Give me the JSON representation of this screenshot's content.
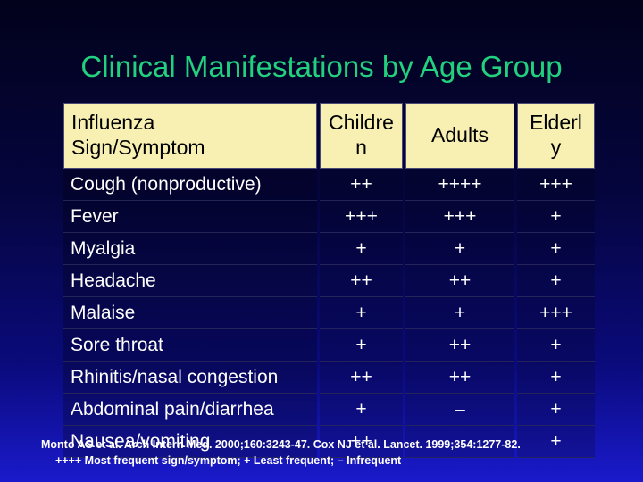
{
  "title": "Clinical Manifestations by Age Group",
  "table": {
    "headers": [
      "Influenza Sign/Symptom",
      "Childre n",
      "Adults",
      "Elderl y"
    ],
    "header_lines": [
      [
        "Influenza",
        "Sign/Symptom"
      ],
      [
        "Childre",
        "n"
      ],
      [
        "Adults"
      ],
      [
        "Elderl",
        "y"
      ]
    ],
    "rows": [
      [
        "Cough (nonproductive)",
        "++",
        "++++",
        "+++"
      ],
      [
        "Fever",
        "+++",
        "+++",
        "+"
      ],
      [
        "Myalgia",
        "+",
        "+",
        "+"
      ],
      [
        "Headache",
        "++",
        "++",
        "+"
      ],
      [
        "Malaise",
        "+",
        "+",
        "+++"
      ],
      [
        "Sore throat",
        "+",
        "++",
        "+"
      ],
      [
        "Rhinitis/nasal congestion",
        "++",
        "++",
        "+"
      ],
      [
        "Abdominal pain/diarrhea",
        "+",
        "–",
        "+"
      ],
      [
        "Nausea/vomiting",
        "++",
        "",
        "+"
      ]
    ]
  },
  "footnotes": {
    "citation": "Monto AS et al. Arch Intern Med. 2000;160:3243-47. Cox NJ et al. Lancet. 1999;354:1277-82.",
    "legend": "++++ Most frequent sign/symptom; + Least frequent; – Infrequent"
  },
  "colors": {
    "title": "#22d07e",
    "header_bg": "#f7f0b2",
    "background_top": "#02021c",
    "background_bottom": "#1a1acc"
  }
}
